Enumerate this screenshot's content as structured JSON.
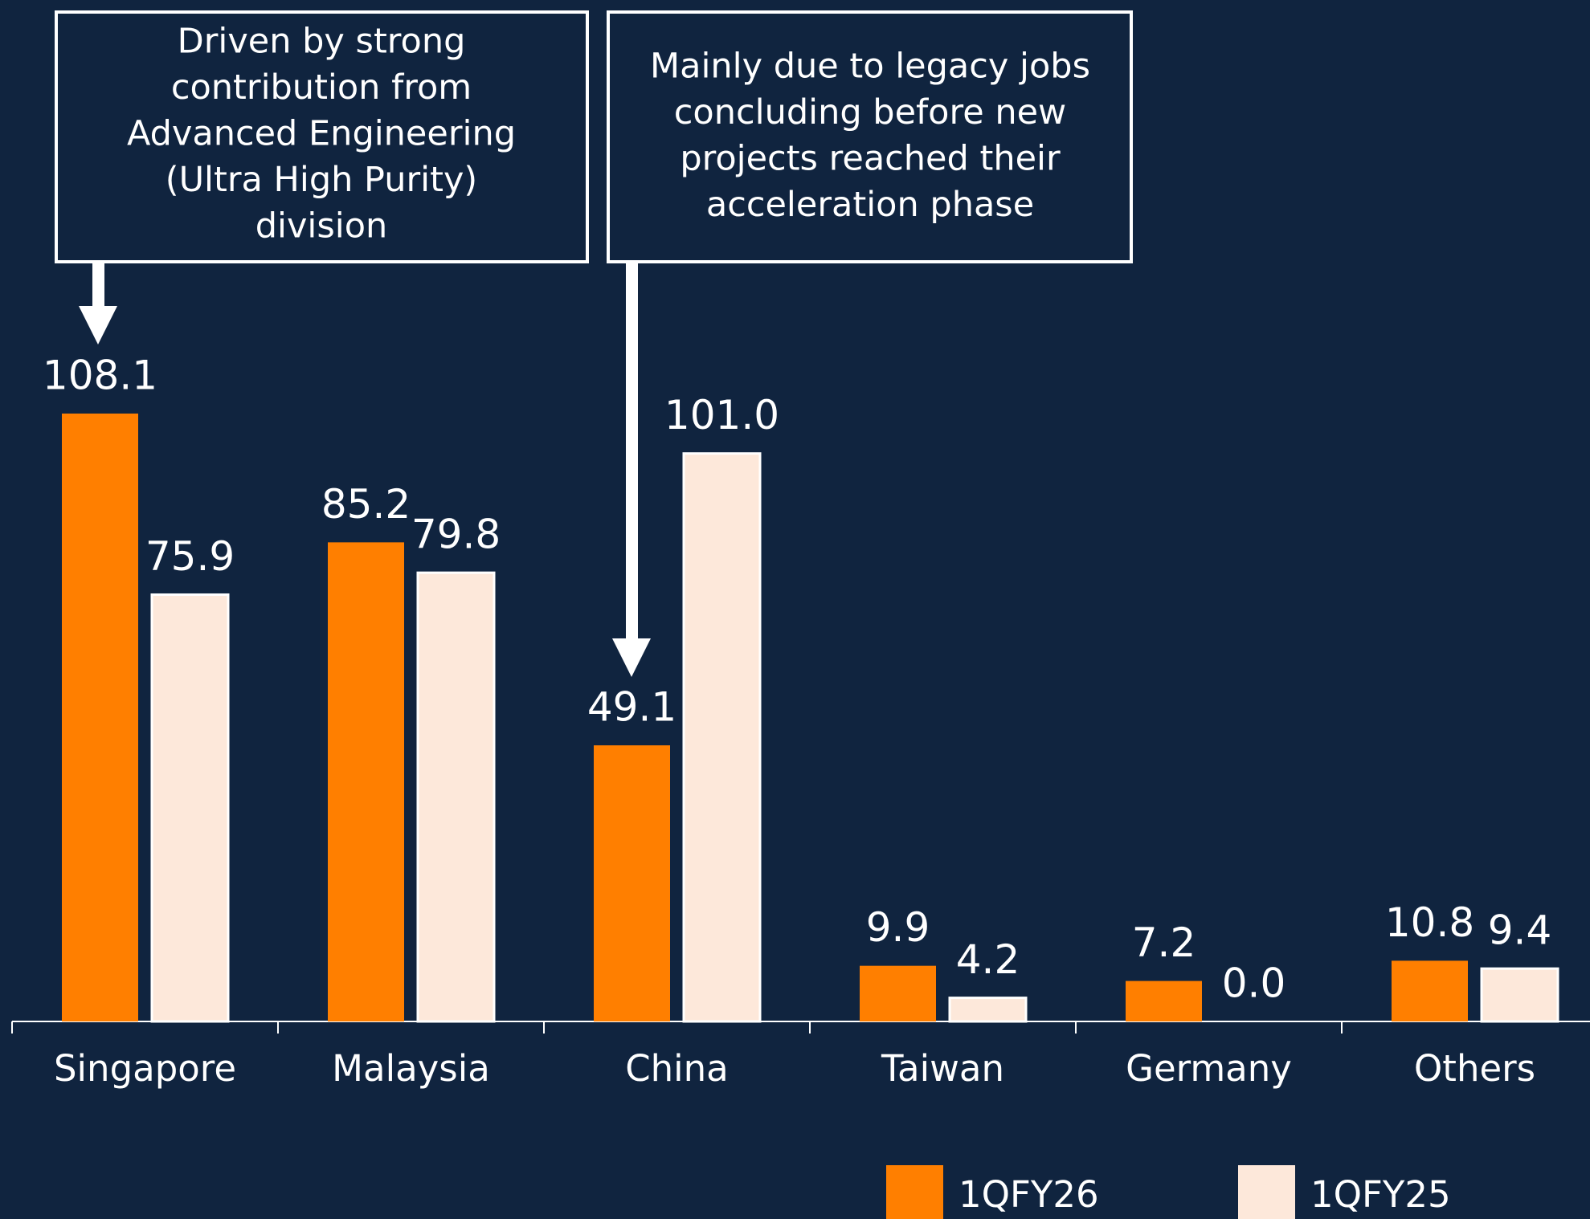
{
  "chart_data": {
    "type": "bar",
    "categories": [
      "Singapore",
      "Malaysia",
      "China",
      "Taiwan",
      "Germany",
      "Others"
    ],
    "series": [
      {
        "name": "1QFY26",
        "color": "#ff7f00",
        "values": [
          108.1,
          85.2,
          49.1,
          9.9,
          7.2,
          10.8
        ],
        "value_labels": [
          "108.1",
          "85.2",
          "49.1",
          "9.9",
          "7.2",
          "10.8"
        ]
      },
      {
        "name": "1QFY25",
        "color": "#fde8da",
        "values": [
          75.9,
          79.8,
          101.0,
          4.2,
          0.0,
          9.4
        ],
        "value_labels": [
          "75.9",
          "79.8",
          "101.0",
          "4.2",
          "0.0",
          "9.4"
        ]
      }
    ],
    "annotations": [
      {
        "text": [
          "Driven by strong",
          "contribution from",
          "Advanced Engineering",
          "(Ultra High Purity)",
          "division"
        ]
      },
      {
        "text": [
          "Mainly due to legacy jobs",
          "concluding before new",
          "projects reached their",
          "acceleration phase"
        ]
      }
    ],
    "legend": "bottom-right"
  }
}
